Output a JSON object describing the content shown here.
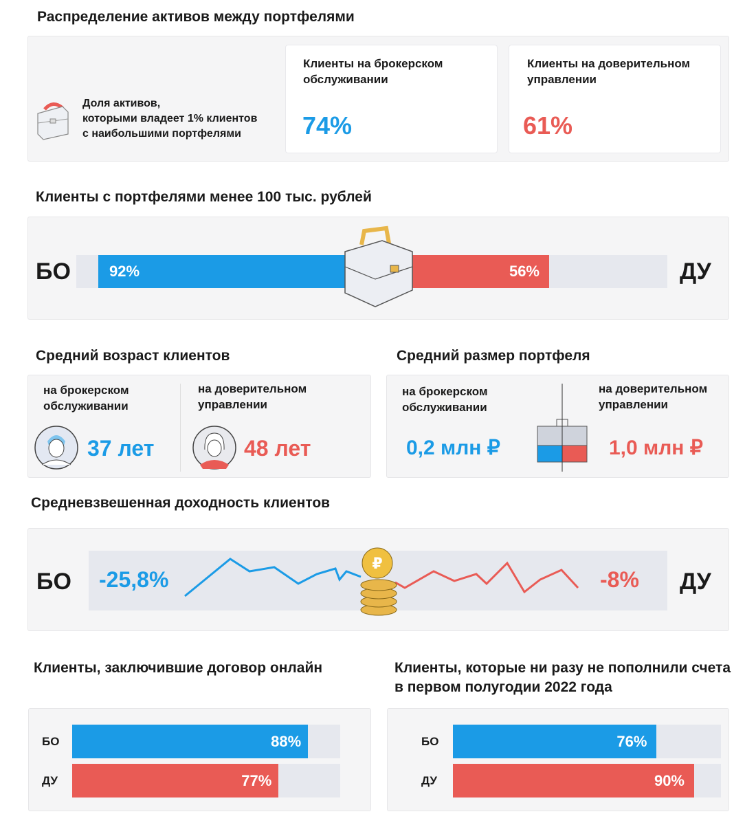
{
  "colors": {
    "bo": "#1b9be6",
    "du": "#e95b55"
  },
  "s1": {
    "title": "Распределение активов между портфелями",
    "desc": [
      "Доля активов,",
      "которыми владеет 1% клиентов",
      "с наибольшими портфелями"
    ],
    "cards": [
      {
        "label": [
          "Клиенты на брокерском",
          "обслуживании"
        ],
        "value": "74%"
      },
      {
        "label": [
          "Клиенты на доверительном",
          "управлении"
        ],
        "value": "61%"
      }
    ]
  },
  "s2": {
    "title": "Клиенты с портфелями менее 100 тыс. рублей",
    "left": "БО",
    "right": "ДУ",
    "bo": "92%",
    "du": "56%"
  },
  "s3": {
    "title": "Средний возраст клиентов",
    "bo_label": [
      "на брокерском",
      "обслуживании"
    ],
    "du_label": [
      "на доверительном",
      "управлении"
    ],
    "bo": "37 лет",
    "du": "48 лет"
  },
  "s4": {
    "title": "Средний размер портфеля",
    "bo_label": [
      "на брокерском",
      "обслуживании"
    ],
    "du_label": [
      "на доверительном",
      "управлении"
    ],
    "bo": "0,2 млн ₽",
    "du": "1,0 млн ₽"
  },
  "s5": {
    "title": "Средневзвешенная доходность клиентов",
    "left": "БО",
    "right": "ДУ",
    "bo": "-25,8%",
    "du": "-8%"
  },
  "chart_data": [
    {
      "type": "bar",
      "title": "Клиенты, заключившие договор онлайн",
      "categories": [
        "БО",
        "ДУ"
      ],
      "values": [
        88,
        77
      ],
      "labels": [
        "88%",
        "77%"
      ],
      "ylim": [
        0,
        100
      ]
    },
    {
      "type": "bar",
      "title": "Клиенты, которые ни разу не пополнили счета в первом полугодии 2022 года",
      "categories": [
        "БО",
        "ДУ"
      ],
      "values": [
        76,
        90
      ],
      "labels": [
        "76%",
        "90%"
      ],
      "ylim": [
        0,
        100
      ]
    }
  ]
}
